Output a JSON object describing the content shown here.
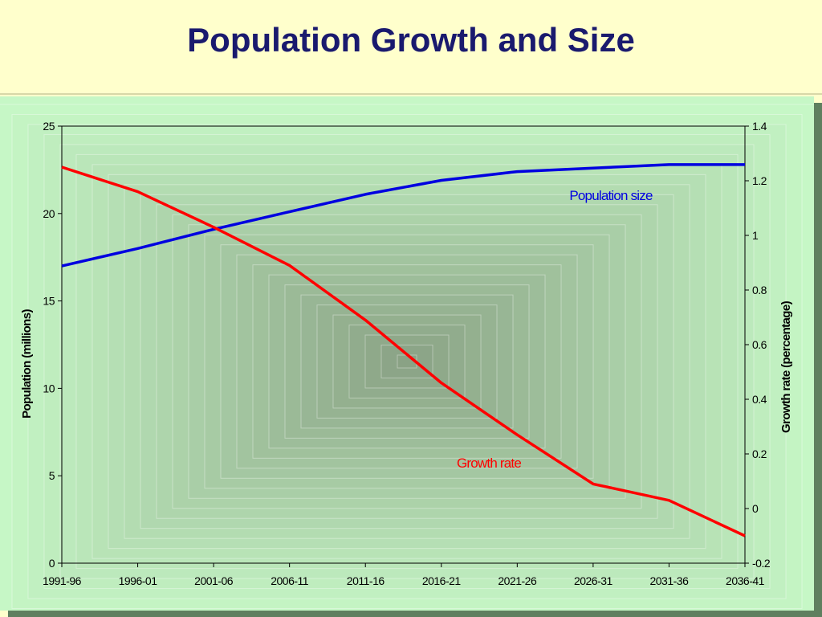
{
  "page": {
    "title": "Population Growth and Size"
  },
  "chart_data": {
    "type": "line",
    "categories": [
      "1991-96",
      "1996-01",
      "2001-06",
      "2006-11",
      "2011-16",
      "2016-21",
      "2021-26",
      "2026-31",
      "2031-36",
      "2036-41"
    ],
    "series": [
      {
        "name": "Population size",
        "axis": "left",
        "color": "#0000e0",
        "values": [
          17.0,
          18.0,
          19.1,
          20.1,
          21.1,
          21.9,
          22.4,
          22.6,
          22.8,
          22.8
        ]
      },
      {
        "name": "Growth rate",
        "axis": "right",
        "color": "#ff0000",
        "values": [
          1.25,
          1.16,
          1.03,
          0.89,
          0.69,
          0.46,
          0.27,
          0.09,
          0.03,
          -0.1
        ]
      }
    ],
    "ylabel": "Population (millions)",
    "ylim": [
      0,
      25
    ],
    "yticks": [
      "0",
      "5",
      "10",
      "15",
      "20",
      "25"
    ],
    "ylabel_right": "Growth rate (percentage)",
    "ylim_right": [
      -0.2,
      1.4
    ],
    "yticks_right": [
      "-0.2",
      "0",
      "0.2",
      "0.4",
      "0.6",
      "0.8",
      "1",
      "1.2",
      "1.4"
    ],
    "grid": false,
    "legend": "inline-labels"
  }
}
